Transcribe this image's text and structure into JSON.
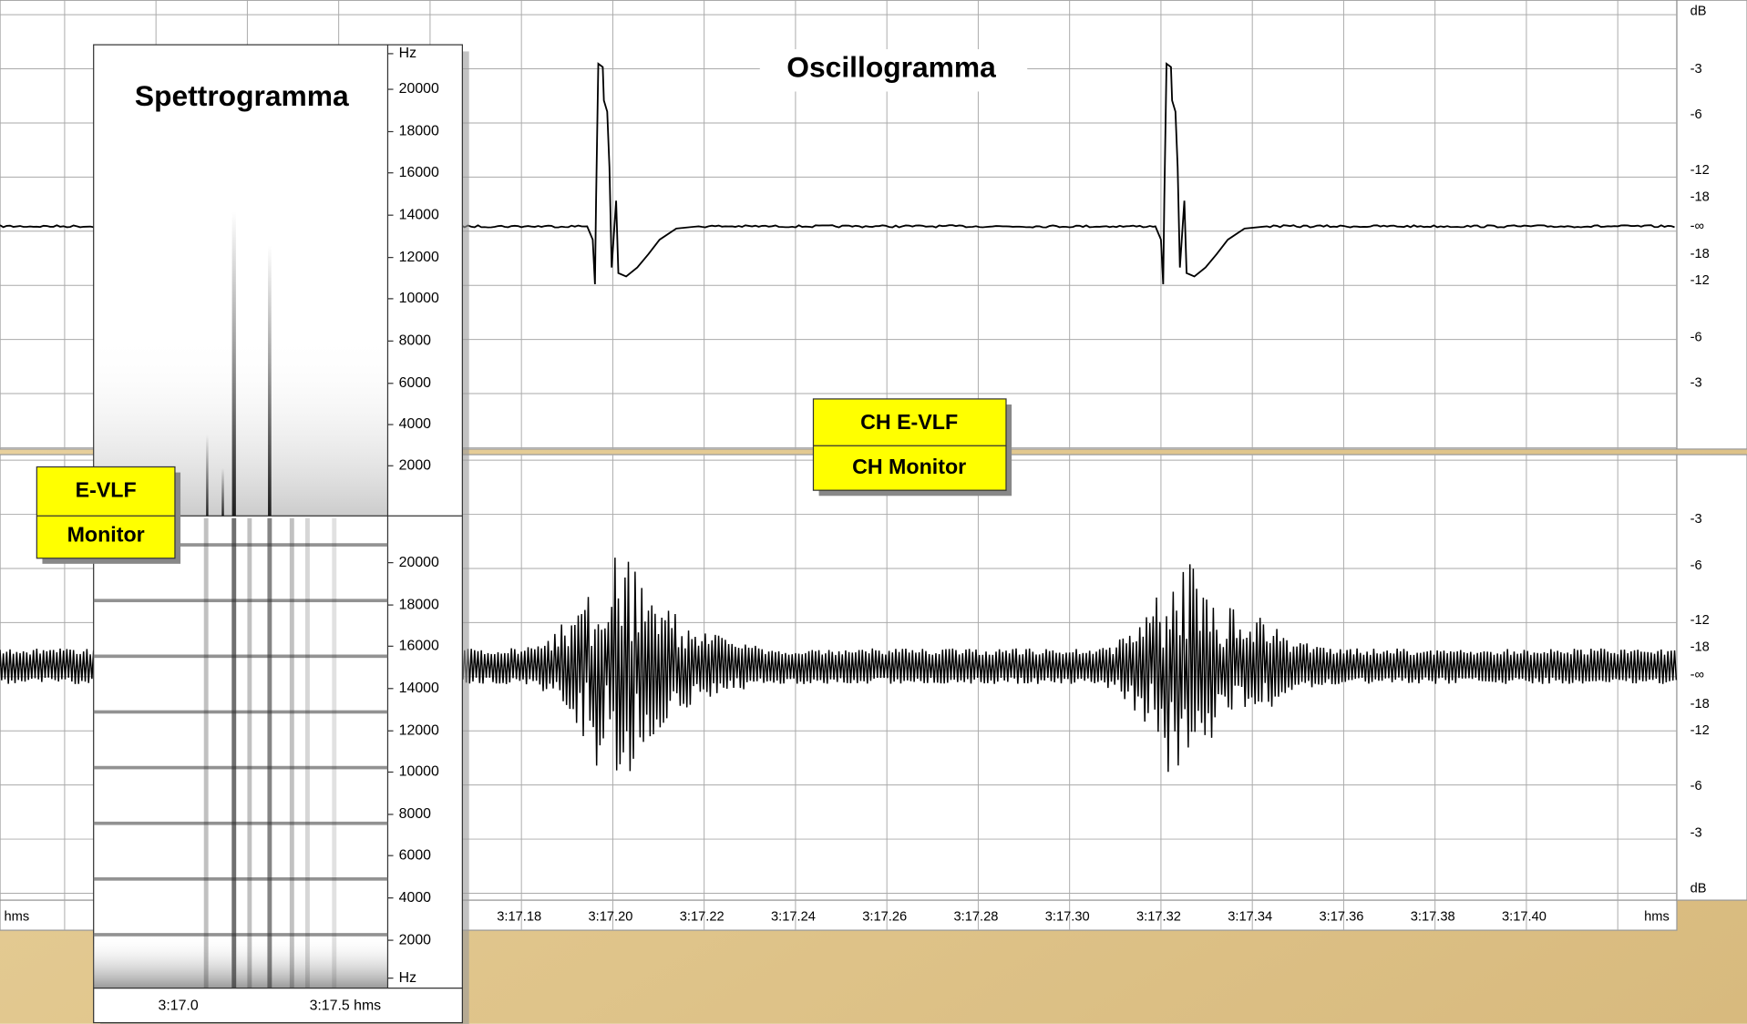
{
  "oscillogram": {
    "title": "Oscillogramma",
    "labels": [
      "CH E-VLF",
      "CH Monitor"
    ],
    "db_axis_top": [
      "dB",
      "-3",
      "-6",
      "-12",
      "-18",
      "-∞",
      "-18",
      "-12",
      "-6",
      "-3"
    ],
    "db_axis_bottom": [
      "-3",
      "-6",
      "-12",
      "-18",
      "-∞",
      "-18",
      "-12",
      "-6",
      "-3",
      "dB"
    ],
    "time_axis": [
      "hms",
      "3:17.18",
      "3:17.20",
      "3:17.22",
      "3:17.24",
      "3:17.26",
      "3:17.28",
      "3:17.30",
      "3:17.32",
      "3:17.34",
      "3:17.36",
      "3:17.38",
      "3:17.40",
      "hms"
    ]
  },
  "spectrogram": {
    "title": "Spettrogramma",
    "labels": [
      "E-VLF",
      "Monitor"
    ],
    "freq_axis_top": [
      "Hz",
      "20000",
      "18000",
      "16000",
      "14000",
      "12000",
      "10000",
      "8000",
      "6000",
      "4000",
      "2000"
    ],
    "freq_axis_bottom": [
      "20000",
      "18000",
      "16000",
      "14000",
      "12000",
      "10000",
      "8000",
      "6000",
      "4000",
      "2000",
      "Hz"
    ],
    "time_axis": [
      "3:17.0",
      "3:17.5 hms"
    ]
  }
}
